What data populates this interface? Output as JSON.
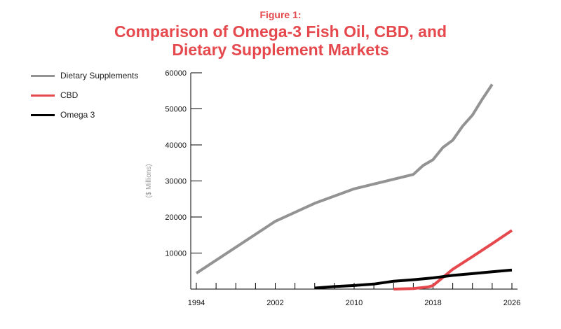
{
  "header": {
    "figure_label": "Figure 1:",
    "title": "Comparison of Omega-3 Fish Oil, CBD, and Dietary Supplement Markets"
  },
  "chart_data": {
    "type": "line",
    "title": "Comparison of Omega-3 Fish Oil, CBD, and Dietary Supplement Markets",
    "xlabel": "",
    "ylabel": "($ Millions)",
    "xlim": [
      1994,
      2026
    ],
    "ylim": [
      0,
      60000
    ],
    "x_ticks": [
      1994,
      2002,
      2010,
      2018,
      2026
    ],
    "y_ticks": [
      10000,
      20000,
      30000,
      40000,
      50000,
      60000
    ],
    "grid": false,
    "legend_position": "top-left",
    "series": [
      {
        "name": "Dietary Supplements",
        "color": "#939393",
        "points": [
          [
            1994,
            4400
          ],
          [
            2002,
            18800
          ],
          [
            2006,
            23800
          ],
          [
            2010,
            27800
          ],
          [
            2016,
            31800
          ],
          [
            2017,
            34300
          ],
          [
            2018,
            35900
          ],
          [
            2019,
            39300
          ],
          [
            2020,
            41300
          ],
          [
            2021,
            45200
          ],
          [
            2022,
            48300
          ],
          [
            2023,
            52700
          ],
          [
            2024,
            56800
          ]
        ]
      },
      {
        "name": "CBD",
        "color": "#e5484d",
        "points": [
          [
            2014,
            0
          ],
          [
            2016,
            150
          ],
          [
            2017.5,
            600
          ],
          [
            2018,
            1000
          ],
          [
            2020,
            5500
          ],
          [
            2022,
            9000
          ],
          [
            2024,
            12600
          ],
          [
            2026,
            16300
          ]
        ]
      },
      {
        "name": "Omega 3",
        "color": "#000000",
        "points": [
          [
            2006,
            300
          ],
          [
            2008,
            700
          ],
          [
            2010,
            1000
          ],
          [
            2012,
            1400
          ],
          [
            2014,
            2200
          ],
          [
            2016,
            2600
          ],
          [
            2018,
            3100
          ],
          [
            2020,
            3800
          ],
          [
            2022,
            4300
          ],
          [
            2024,
            4800
          ],
          [
            2026,
            5300
          ]
        ]
      }
    ]
  }
}
